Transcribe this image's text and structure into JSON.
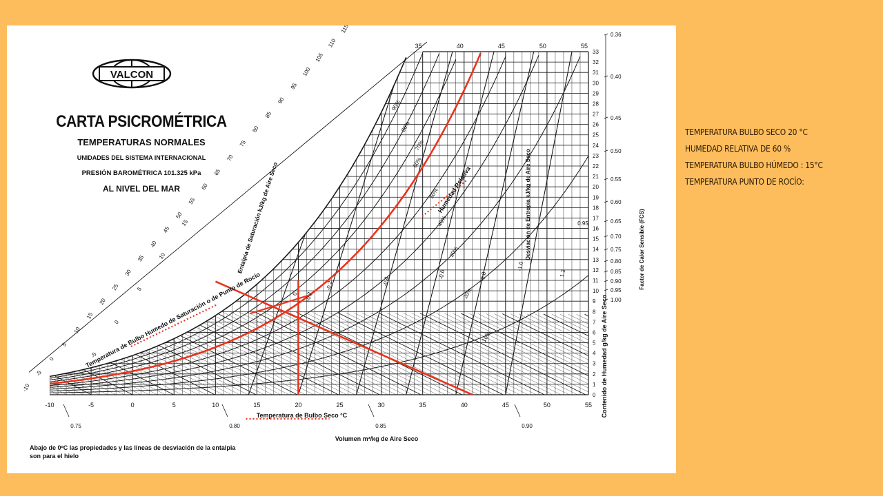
{
  "header": {
    "brand": "VALCON",
    "title": "CARTA PSICROMÉTRICA",
    "subtitle": "TEMPERATURAS NORMALES",
    "system": "UNIDADES DEL SISTEMA INTERNACIONAL",
    "pressure": "PRESIÓN BAROMÉTRICA 101.325 kPa",
    "sea_level": "AL NIVEL DEL MAR"
  },
  "footnote": "Abajo de 0ºC las propiedades y las lineas de desviación de la entalpia son para el hielo",
  "notes": [
    "Temperatura bulbo seco 20 °C",
    "Humedad relativa de 60 %",
    "Temperatura bulbo húmedo : 15°C",
    "Temperatura punto de rocío:"
  ],
  "colors": {
    "background": "#fdbd5c",
    "panel": "#ffffff",
    "grid": "#1a1a1a",
    "highlight": "#e8341c"
  },
  "chart_data": {
    "type": "line",
    "title": "CARTA PSICROMÉTRICA",
    "xlabel": "Temperatura de Bulbo Seco °C",
    "ylabel": "Contenido de Humedad g/kg de Aire Seco",
    "right_label": "Factor de Calor Sensible (FCS)",
    "enthalpy_label": "Entalpia de Saturación kJ/kg de Aire Seco",
    "wetbulb_label": "Temperatura de Bulbo Humedo de Saturación o de Punto de Rocío",
    "volume_label": "Volumen m³/kg de Aire Seco",
    "rh_axis_label": "Humedad Relativa",
    "entropy_label": "Desviación de Entropia kJ/kg de Aire Seco",
    "xlim": [
      -10,
      55
    ],
    "ylim": [
      0,
      33
    ],
    "x_ticks": [
      "-10",
      "-5",
      "0",
      "5",
      "10",
      "15",
      "20",
      "25",
      "30",
      "35",
      "40",
      "45",
      "50",
      "55"
    ],
    "top_ticks": [
      "35",
      "40",
      "45",
      "50",
      "55"
    ],
    "y_ticks": [
      "0",
      "1",
      "2",
      "3",
      "4",
      "5",
      "6",
      "7",
      "8",
      "9",
      "10",
      "11",
      "12",
      "13",
      "14",
      "15",
      "16",
      "17",
      "18",
      "19",
      "20",
      "21",
      "22",
      "23",
      "24",
      "25",
      "26",
      "27",
      "28",
      "29",
      "30",
      "31",
      "32",
      "33"
    ],
    "enthalpy_ticks": [
      "-10",
      "-5",
      "0",
      "5",
      "10",
      "15",
      "20",
      "25",
      "30",
      "35",
      "40",
      "45",
      "50",
      "55",
      "60",
      "65",
      "70",
      "75",
      "80",
      "85",
      "90",
      "95",
      "100",
      "105",
      "110",
      "115"
    ],
    "wetbulb_ticks": [
      "-5",
      "0",
      "5",
      "10",
      "15",
      "20",
      "25",
      "30"
    ],
    "shr_ticks": [
      "0.36",
      "0.40",
      "0.45",
      "0.50",
      "0.55",
      "0.60",
      "0.65",
      "0.70",
      "0.75",
      "0.80",
      "0.85",
      "0.90",
      "0.95",
      "1.00"
    ],
    "volume_ticks": [
      "0.75",
      "0.80",
      "0.85",
      "0.90"
    ],
    "rh_labels": [
      "10%",
      "20%",
      "30%",
      "40%",
      "50%",
      "60%",
      "70%",
      "80%",
      "90%"
    ],
    "rh_percent": [
      10,
      20,
      30,
      40,
      50,
      60,
      70,
      80,
      90
    ],
    "entropy_ticks": [
      "-1.0",
      "-0.8",
      "-0.6",
      "-0.4",
      "-0.2",
      "0",
      "+0.2",
      "+0.4",
      "+0.6",
      "+0.8",
      "+1.0",
      "0.2",
      "0.4",
      "0.6",
      "0.8",
      "1.0",
      "1.2",
      "0.95"
    ],
    "highlight": {
      "dry_bulb_c": 20,
      "relative_humidity_pct": 60,
      "wet_bulb_c": 15,
      "humidity_ratio_g_per_kg": 9
    }
  }
}
